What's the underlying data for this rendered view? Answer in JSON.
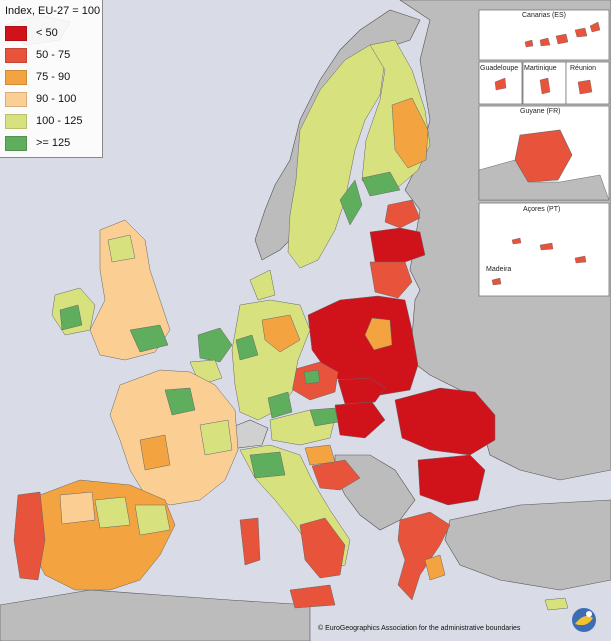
{
  "legend": {
    "title": "Index, EU-27 = 100",
    "classes": [
      {
        "label": "< 50",
        "color": "#d0121b"
      },
      {
        "label": "50 - 75",
        "color": "#e8533b"
      },
      {
        "label": "75 - 90",
        "color": "#f4a341"
      },
      {
        "label": "90 - 100",
        "color": "#fbcf94"
      },
      {
        "label": "100 - 125",
        "color": "#d7e27f"
      },
      {
        "label": ">= 125",
        "color": "#5fae5e"
      }
    ]
  },
  "insets": {
    "canarias": "Canarias (ES)",
    "guadeloupe": "Guadeloupe",
    "martinique": "Martinique",
    "reunion": "Réunion",
    "guyane": "Guyane (FR)",
    "acores": "Açores (PT)",
    "madeira": "Madeira"
  },
  "footer": {
    "copyright": "© EuroGeographics Association for the administrative boundaries"
  },
  "colors": {
    "sea": "#d9dbe6",
    "non_eu_land": "#bcbcbc",
    "no_data": "#d0d0d0",
    "border": "#555555"
  }
}
